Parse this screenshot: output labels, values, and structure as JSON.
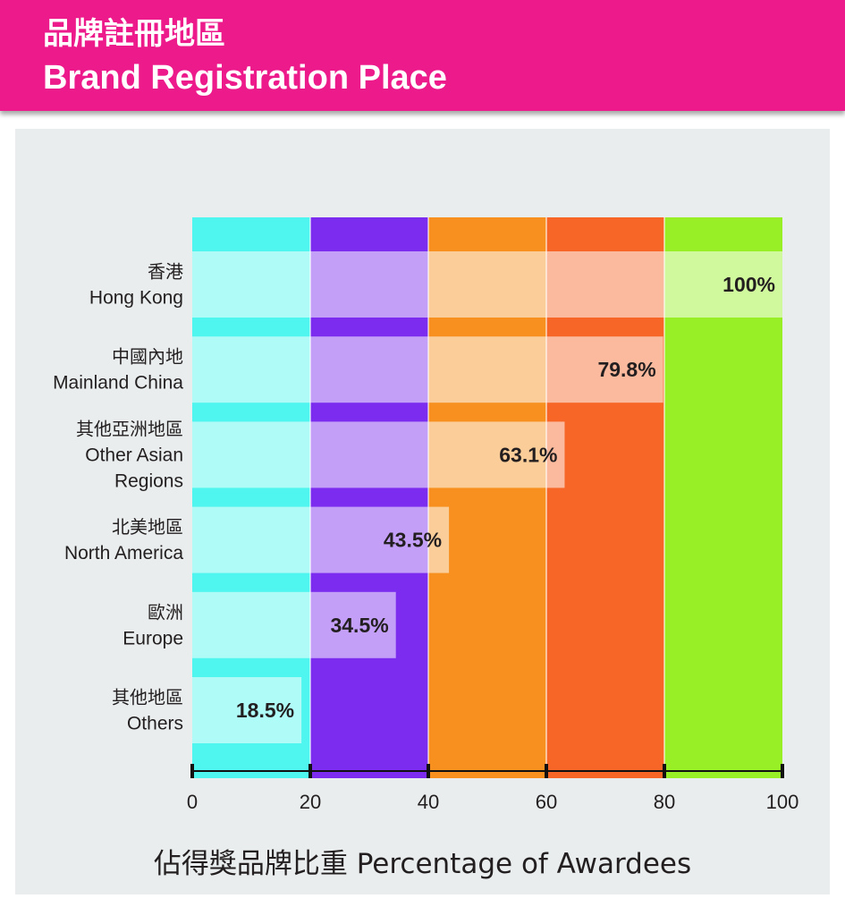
{
  "header": {
    "title_zh": "品牌註冊地區",
    "title_en": "Brand Registration Place"
  },
  "chart_data": {
    "type": "bar",
    "orientation": "horizontal",
    "title": "品牌註冊地區 Brand Registration Place",
    "xlabel": "佔得獎品牌比重 Percentage of Awardees",
    "ylabel": "",
    "xlim": [
      0,
      100
    ],
    "x_ticks": [
      "0",
      "20",
      "40",
      "60",
      "80",
      "100"
    ],
    "background_bands": [
      {
        "from": 0,
        "to": 20,
        "color": "#4ff5ef"
      },
      {
        "from": 20,
        "to": 40,
        "color": "#7b2cef"
      },
      {
        "from": 40,
        "to": 60,
        "color": "#f7901e"
      },
      {
        "from": 60,
        "to": 80,
        "color": "#f76626"
      },
      {
        "from": 80,
        "to": 100,
        "color": "#98ef25"
      }
    ],
    "categories": [
      {
        "zh": "香港",
        "en": [
          "Hong Kong"
        ]
      },
      {
        "zh": "中國內地",
        "en": [
          "Mainland China"
        ]
      },
      {
        "zh": "其他亞洲地區",
        "en": [
          "Other Asian",
          "Regions"
        ]
      },
      {
        "zh": "北美地區",
        "en": [
          "North America"
        ]
      },
      {
        "zh": "歐洲",
        "en": [
          "Europe"
        ]
      },
      {
        "zh": "其他地區",
        "en": [
          "Others"
        ]
      }
    ],
    "values": [
      100,
      79.8,
      63.1,
      43.5,
      34.5,
      18.5
    ],
    "value_labels": [
      "100%",
      "79.8%",
      "63.1%",
      "43.5%",
      "34.5%",
      "18.5%"
    ],
    "grid": false,
    "legend": "none"
  }
}
